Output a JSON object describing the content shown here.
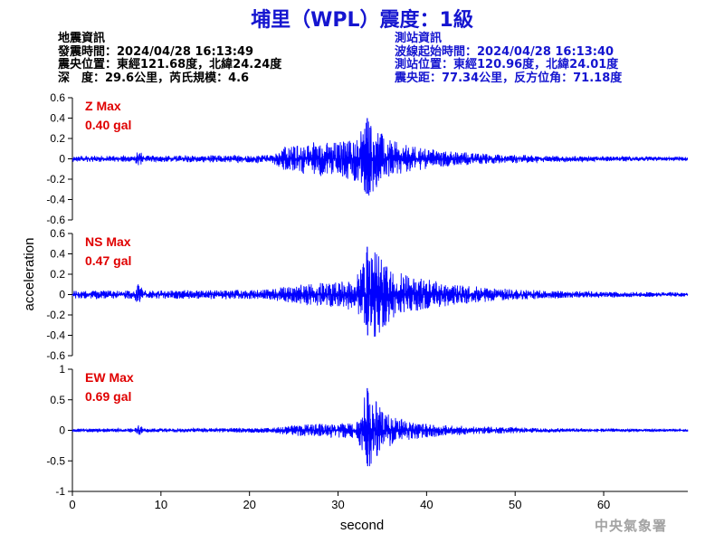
{
  "title": "埔里（WPL）震度：1級",
  "earthquake_info": {
    "heading": "地震資訊",
    "origin_time": "發震時間：2024/04/28 16:13:49",
    "epicenter": "震央位置：東經121.68度，北緯24.24度",
    "depth_magnitude": "深　度：29.6公里，芮氏規模：4.6"
  },
  "station_info": {
    "heading": "測站資訊",
    "wave_start": "波線起始時間：2024/04/28 16:13:40",
    "station_location": "測站位置：東經120.96度，北緯24.01度",
    "distance_azimuth": "震央距：77.34公里，反方位角：71.18度"
  },
  "footer": "中央氣象署",
  "colors": {
    "trace": "#0000ff",
    "title": "#1515d0",
    "max_label": "#e00000",
    "axis": "#000000"
  },
  "chart_data": {
    "type": "line",
    "xlabel": "second",
    "ylabel": "acceleration",
    "xlim": [
      0,
      69.5
    ],
    "x_ticks": [
      0,
      10,
      20,
      30,
      40,
      50,
      60
    ],
    "duration_s": 69.5,
    "panels": [
      {
        "name": "Z",
        "max_label": "Z Max",
        "max_value": "0.40 gal",
        "ylim": [
          -0.6,
          0.6
        ],
        "y_ticks": [
          -0.6,
          -0.4,
          -0.2,
          0,
          0.2,
          0.4,
          0.6
        ],
        "y_tick_labels": [
          "-0.6",
          "-0.4",
          "-0.2",
          "0",
          "0.2",
          "0.4",
          "0.6"
        ],
        "envelope": [
          [
            0,
            0.03
          ],
          [
            7.0,
            0.03
          ],
          [
            7.5,
            0.1
          ],
          [
            8.0,
            0.03
          ],
          [
            22.5,
            0.04
          ],
          [
            24,
            0.12
          ],
          [
            26,
            0.15
          ],
          [
            28,
            0.17
          ],
          [
            30,
            0.18
          ],
          [
            32,
            0.22
          ],
          [
            33.3,
            0.4
          ],
          [
            34.5,
            0.28
          ],
          [
            36,
            0.18
          ],
          [
            38,
            0.13
          ],
          [
            40,
            0.1
          ],
          [
            43,
            0.07
          ],
          [
            47,
            0.05
          ],
          [
            52,
            0.035
          ],
          [
            58,
            0.025
          ],
          [
            69.5,
            0.02
          ]
        ]
      },
      {
        "name": "NS",
        "max_label": "NS Max",
        "max_value": "0.47 gal",
        "ylim": [
          -0.6,
          0.6
        ],
        "y_ticks": [
          -0.6,
          -0.4,
          -0.2,
          0,
          0.2,
          0.4,
          0.6
        ],
        "y_tick_labels": [
          "-0.6",
          "-0.4",
          "-0.2",
          "0",
          "0.2",
          "0.4",
          "0.6"
        ],
        "envelope": [
          [
            0,
            0.04
          ],
          [
            7.0,
            0.04
          ],
          [
            7.5,
            0.12
          ],
          [
            8.0,
            0.04
          ],
          [
            22.5,
            0.05
          ],
          [
            24,
            0.08
          ],
          [
            26,
            0.1
          ],
          [
            28,
            0.12
          ],
          [
            30,
            0.13
          ],
          [
            32,
            0.16
          ],
          [
            33.3,
            0.47
          ],
          [
            34.5,
            0.4
          ],
          [
            36,
            0.25
          ],
          [
            38,
            0.18
          ],
          [
            40,
            0.15
          ],
          [
            43,
            0.1
          ],
          [
            47,
            0.07
          ],
          [
            52,
            0.045
          ],
          [
            58,
            0.03
          ],
          [
            69.5,
            0.02
          ]
        ]
      },
      {
        "name": "EW",
        "max_label": "EW Max",
        "max_value": "0.69 gal",
        "ylim": [
          -1,
          1
        ],
        "y_ticks": [
          -1,
          -0.5,
          0,
          0.5,
          1
        ],
        "y_tick_labels": [
          "-1",
          "-0.5",
          "0",
          "0.5",
          "1"
        ],
        "envelope": [
          [
            0,
            0.03
          ],
          [
            7.0,
            0.03
          ],
          [
            7.5,
            0.09
          ],
          [
            8.0,
            0.03
          ],
          [
            22.5,
            0.04
          ],
          [
            24,
            0.07
          ],
          [
            26,
            0.1
          ],
          [
            28,
            0.11
          ],
          [
            30,
            0.12
          ],
          [
            32,
            0.14
          ],
          [
            33.3,
            0.69
          ],
          [
            34.5,
            0.45
          ],
          [
            36,
            0.24
          ],
          [
            38,
            0.16
          ],
          [
            40,
            0.12
          ],
          [
            43,
            0.08
          ],
          [
            47,
            0.06
          ],
          [
            52,
            0.04
          ],
          [
            58,
            0.03
          ],
          [
            69.5,
            0.02
          ]
        ]
      }
    ]
  }
}
